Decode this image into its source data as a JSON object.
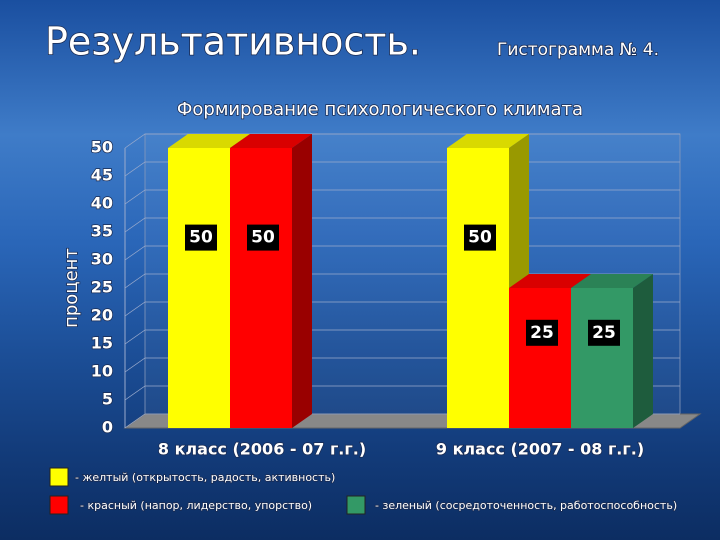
{
  "chart_data": {
    "type": "bar3d",
    "title": "Результативность.",
    "subtitle": "Гистограмма № 4.",
    "chart_title": "Формирование психологического климата",
    "y_label": "процент",
    "categories": [
      "8 класс (2006 - 07 г.г.)",
      "9 класс (2007 - 08 г.г.)"
    ],
    "series": [
      {
        "name": "- желтый (открытость, радость, активность)",
        "color": "#ffff00",
        "values": [
          50,
          50
        ]
      },
      {
        "name": "- красный (напор, лидерство, упорство)",
        "color": "#ff0000",
        "values": [
          50,
          25
        ]
      },
      {
        "name": "- зеленый (сосредоточенность, работоспособность)",
        "color": "#339966",
        "values": [
          null,
          25
        ]
      }
    ],
    "ylim": [
      0,
      50
    ],
    "yticks": [
      0,
      5,
      10,
      15,
      20,
      25,
      30,
      35,
      40,
      45,
      50
    ],
    "grid": true
  }
}
